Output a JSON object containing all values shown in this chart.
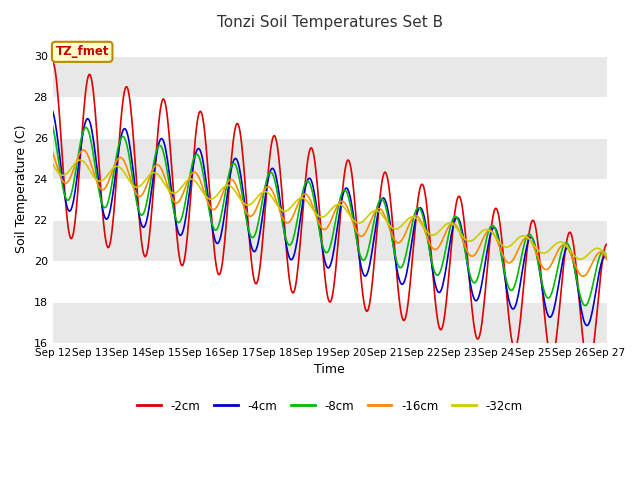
{
  "title": "Tonzi Soil Temperatures Set B",
  "xlabel": "Time",
  "ylabel": "Soil Temperature (C)",
  "ylim": [
    16,
    31
  ],
  "yticks": [
    16,
    18,
    20,
    22,
    24,
    26,
    28,
    30
  ],
  "annotation_text": "TZ_fmet",
  "annotation_color": "#cc0000",
  "annotation_bg": "#ffffcc",
  "annotation_border": "#bb8800",
  "fig_bg": "#ffffff",
  "plot_bg": "#ffffff",
  "series": [
    {
      "label": "-2cm",
      "color": "#dd0000",
      "linewidth": 1.2
    },
    {
      "label": "-4cm",
      "color": "#0000cc",
      "linewidth": 1.2
    },
    {
      "label": "-8cm",
      "color": "#00bb00",
      "linewidth": 1.2
    },
    {
      "label": "-16cm",
      "color": "#ff8800",
      "linewidth": 1.2
    },
    {
      "label": "-32cm",
      "color": "#cccc00",
      "linewidth": 1.2
    }
  ],
  "xtick_labels": [
    "Sep 12",
    "Sep 13",
    "Sep 14",
    "Sep 15",
    "Sep 16",
    "Sep 17",
    "Sep 18",
    "Sep 19",
    "Sep 20",
    "Sep 21",
    "Sep 22",
    "Sep 23",
    "Sep 24",
    "Sep 25",
    "Sep 26",
    "Sep 27"
  ],
  "n_days": 15,
  "base_2cm": 25.5,
  "base_4cm": 25.0,
  "base_8cm": 25.0,
  "base_16cm": 24.8,
  "base_32cm": 24.7,
  "amp_2cm": 4.2,
  "amp_4cm": 2.4,
  "amp_8cm": 1.9,
  "amp_16cm": 0.9,
  "amp_32cm": 0.45,
  "trend_2cm": -0.52,
  "trend_4cm": -0.44,
  "trend_8cm": -0.4,
  "trend_16cm": -0.34,
  "trend_32cm": -0.3,
  "phase_2cm": 1.57,
  "phase_4cm": 1.87,
  "phase_8cm": 2.17,
  "phase_16cm": 2.57,
  "phase_32cm": 3.07
}
